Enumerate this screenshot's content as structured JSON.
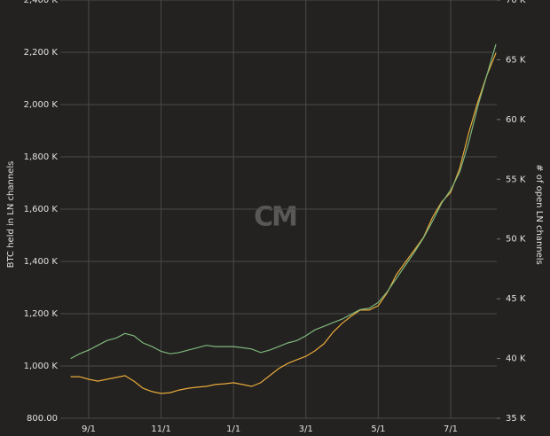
{
  "chart_data": {
    "type": "line",
    "y_label": "BTC held in LN channels",
    "y2_label": "# of open LN channels",
    "watermark": "CM",
    "grid": true,
    "categories": [
      null,
      null,
      "9/1",
      null,
      null,
      null,
      null,
      null,
      null,
      null,
      "11/1",
      null,
      null,
      null,
      null,
      null,
      null,
      null,
      "1/1",
      null,
      null,
      null,
      null,
      null,
      null,
      null,
      "3/1",
      null,
      null,
      null,
      null,
      null,
      null,
      null,
      "5/1",
      null,
      null,
      null,
      null,
      null,
      null,
      null,
      "7/1",
      null,
      null,
      null,
      null,
      null
    ],
    "ylim": [
      800,
      2400
    ],
    "yticks": [
      {
        "value": 800,
        "label": "800.00"
      },
      {
        "value": 1000,
        "label": "1,000 K"
      },
      {
        "value": 1200,
        "label": "1,200 K"
      },
      {
        "value": 1400,
        "label": "1,400 K"
      },
      {
        "value": 1600,
        "label": "1,600 K"
      },
      {
        "value": 1800,
        "label": "1,800 K"
      },
      {
        "value": 2000,
        "label": "2,000 K"
      },
      {
        "value": 2200,
        "label": "2,200 K"
      },
      {
        "value": 2400,
        "label": "2,400 K"
      }
    ],
    "y2lim": [
      35,
      70
    ],
    "y2ticks": [
      {
        "value": 35,
        "label": "35 K"
      },
      {
        "value": 40,
        "label": "40 K"
      },
      {
        "value": 45,
        "label": "45 K"
      },
      {
        "value": 50,
        "label": "50 K"
      },
      {
        "value": 55,
        "label": "55 K"
      },
      {
        "value": 60,
        "label": "60 K"
      },
      {
        "value": 65,
        "label": "65 K"
      },
      {
        "value": 70,
        "label": "70 K"
      }
    ],
    "series": [
      {
        "color": "#e8a93a",
        "values": [
          959,
          959,
          949,
          942,
          949,
          956,
          963,
          942,
          915,
          902,
          895,
          898,
          908,
          915,
          919,
          922,
          929,
          932,
          936,
          929,
          922,
          936,
          963,
          990,
          1010,
          1024,
          1037,
          1058,
          1085,
          1129,
          1163,
          1190,
          1214,
          1214,
          1231,
          1281,
          1349,
          1397,
          1444,
          1492,
          1569,
          1627,
          1664,
          1756,
          1892,
          2010,
          2112,
          2197
        ]
      },
      {
        "color": "#7fb77a",
        "axis": "y2",
        "values": [
          40.0,
          40.4,
          40.7,
          41.1,
          41.5,
          41.7,
          42.1,
          41.9,
          41.3,
          41.0,
          40.6,
          40.4,
          40.5,
          40.7,
          40.9,
          41.1,
          41.0,
          41.0,
          41.0,
          40.9,
          40.8,
          40.5,
          40.7,
          41.0,
          41.3,
          41.5,
          41.9,
          42.4,
          42.7,
          43.0,
          43.3,
          43.7,
          44.1,
          44.2,
          44.7,
          45.6,
          46.7,
          47.8,
          48.9,
          50.1,
          51.5,
          53.0,
          54.1,
          55.6,
          58.1,
          61.1,
          63.7,
          66.3
        ]
      }
    ]
  }
}
